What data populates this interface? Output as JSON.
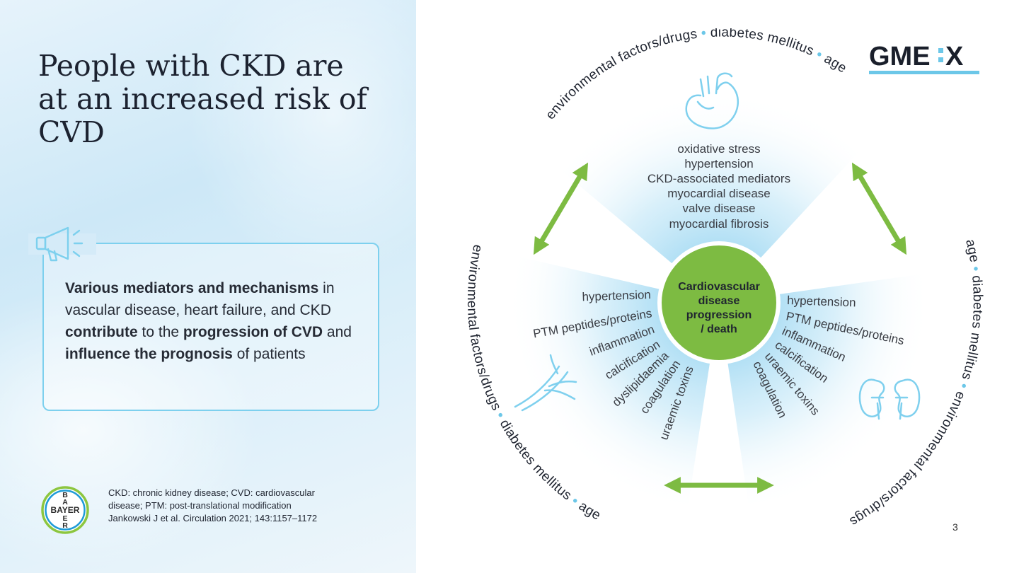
{
  "slide": {
    "title_lines": [
      "People with CKD are",
      "at an increased risk of",
      "CVD"
    ],
    "page_number": "3"
  },
  "callout": {
    "segments": [
      {
        "text": "Various mediators and mechanisms",
        "bold": true
      },
      {
        "text": " in vascular disease, heart failure, and CKD ",
        "bold": false
      },
      {
        "text": "contribute",
        "bold": true
      },
      {
        "text": " to the ",
        "bold": false
      },
      {
        "text": "progression of CVD",
        "bold": true
      },
      {
        "text": " and ",
        "bold": false
      },
      {
        "text": "influence the prognosis",
        "bold": true
      },
      {
        "text": " of patients",
        "bold": false
      }
    ]
  },
  "footnote": {
    "lines": [
      "CKD: chronic kidney disease; CVD: cardiovascular",
      "disease; PTM: post-translational modification",
      "Jankowski J et al. Circulation 2021; 143:1157–1172"
    ]
  },
  "logos": {
    "gmex": {
      "left": "GME",
      "right": "X",
      "color": "#1a1f2b",
      "accent": "#6cc7e8"
    },
    "bayer": {
      "letters_vertical": [
        "B",
        "A",
        "Y",
        "E",
        "R"
      ],
      "horizontal": "BAYER",
      "ring_outer": "#8cc63f",
      "ring_inner": "#1f9bd7"
    }
  },
  "diagram": {
    "center": {
      "lines": [
        "Cardiovascular",
        "disease",
        "progression",
        "/ death"
      ],
      "color": "#7dbb42"
    },
    "outer_ring": {
      "top": [
        "environmental factors/drugs",
        "diabetes mellitus",
        "age"
      ],
      "left": [
        "environmental factors/drugs",
        "diabetes mellitus",
        "age"
      ],
      "right": [
        "age",
        "diabetes mellitus",
        "environmental factors/drugs"
      ]
    },
    "heart_mediators": [
      "oxidative stress",
      "hypertension",
      "CKD-associated mediators",
      "myocardial disease",
      "valve disease",
      "myocardial fibrosis"
    ],
    "vessel_mediators": [
      "hypertension",
      "PTM peptides/proteins",
      "inflammation",
      "calcification",
      "dyslipidaemia",
      "coagulation",
      "uraemic toxins"
    ],
    "kidney_mediators": [
      "hypertension",
      "PTM peptides/proteins",
      "inflammation",
      "calcification",
      "uraemic toxins",
      "coagulation"
    ],
    "icons": [
      "heart-icon",
      "blood-vessel-icon",
      "kidney-icon"
    ],
    "colors": {
      "arrow": "#7dbb42",
      "icon": "#7fd0ee",
      "fan": "#9fd8f2",
      "text": "#3a3d44"
    }
  }
}
